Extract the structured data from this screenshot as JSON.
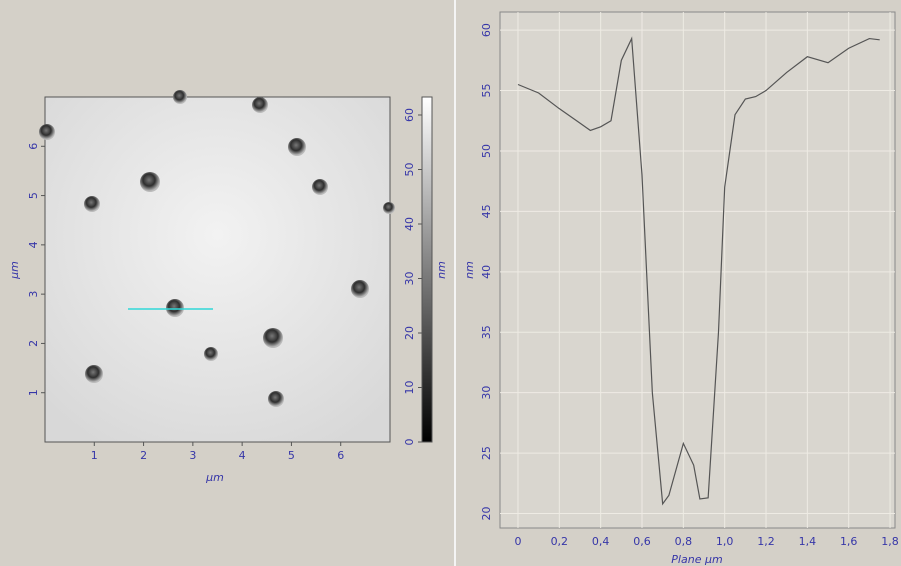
{
  "chart_data": [
    {
      "type": "image",
      "x_label": "μm",
      "y_label": "μm",
      "xlim": [
        0,
        7
      ],
      "ylim": [
        0,
        7
      ],
      "xticks": [
        1,
        2,
        3,
        4,
        5,
        6
      ],
      "yticks": [
        1,
        2,
        3,
        4,
        5,
        6
      ],
      "colorbar": {
        "label": "nm",
        "lim": [
          0,
          63.3
        ],
        "ticks": [
          0,
          10,
          20,
          30,
          40,
          50,
          60
        ]
      }
    },
    {
      "type": "line",
      "x_label": "Plane μm",
      "y_label": "nm",
      "grid": true,
      "xlim": [
        -0.087,
        1.824
      ],
      "ylim": [
        18.8,
        61.5
      ],
      "xticks": [
        0,
        {
          "value": 0.2,
          "label": "0,2"
        },
        {
          "value": 0.4,
          "label": "0,4"
        },
        {
          "value": 0.6,
          "label": "0,6"
        },
        {
          "value": 0.8,
          "label": "0,8"
        },
        {
          "value": 1,
          "label": "1,0"
        },
        {
          "value": 1.2,
          "label": "1,2"
        },
        {
          "value": 1.4,
          "label": "1,4"
        },
        {
          "value": 1.6,
          "label": "1,6"
        },
        {
          "value": 1.8,
          "label": "1,8"
        }
      ],
      "yticks": [
        20,
        25,
        30,
        35,
        40,
        45,
        50,
        55,
        60
      ],
      "series": [
        {
          "color": "#555555",
          "x": [
            0,
            0.1,
            0.2,
            0.3,
            0.35,
            0.4,
            0.45,
            0.5,
            0.55,
            0.6,
            0.65,
            0.7,
            0.73,
            0.8,
            0.85,
            0.88,
            0.92,
            0.97,
            1.0,
            1.05,
            1.1,
            1.15,
            1.2,
            1.3,
            1.4,
            1.5,
            1.6,
            1.7,
            1.75
          ],
          "values": [
            55.5,
            54.8,
            53.5,
            52.3,
            51.7,
            52,
            52.5,
            57.5,
            59.3,
            48,
            30,
            20.8,
            21.5,
            25.8,
            24,
            21.2,
            21.3,
            35,
            47,
            53,
            54.3,
            54.5,
            55,
            56.5,
            57.8,
            57.3,
            58.5,
            59.3,
            59.2
          ]
        }
      ]
    }
  ]
}
